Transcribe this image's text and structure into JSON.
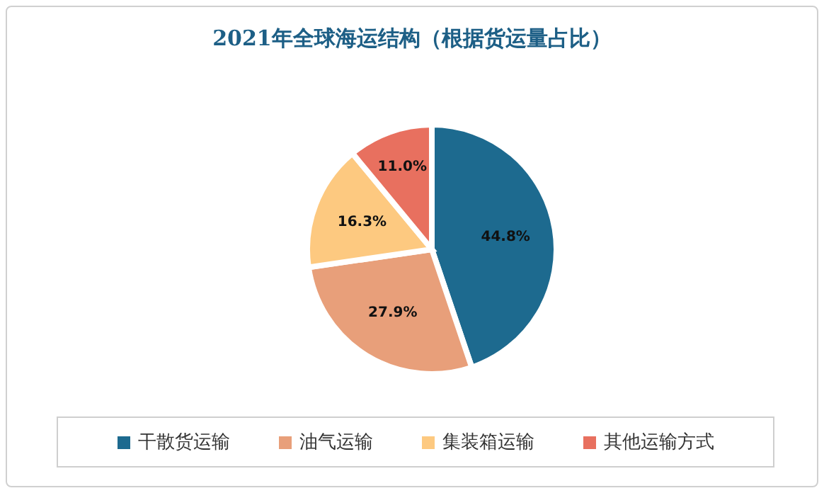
{
  "chart_data": {
    "type": "pie",
    "title": "2021年全球海运结构（根据货运量占比）",
    "categories": [
      "干散货运输",
      "油气运输",
      "集装箱运输",
      "其他运输方式"
    ],
    "values": [
      44.8,
      27.9,
      16.3,
      11.0
    ],
    "value_labels": [
      "44.8%",
      "27.9%",
      "16.3%",
      "11.0%"
    ],
    "colors": [
      "#1d6a8f",
      "#e89f7a",
      "#fdc980",
      "#e8705f"
    ],
    "legend": "bottom"
  }
}
